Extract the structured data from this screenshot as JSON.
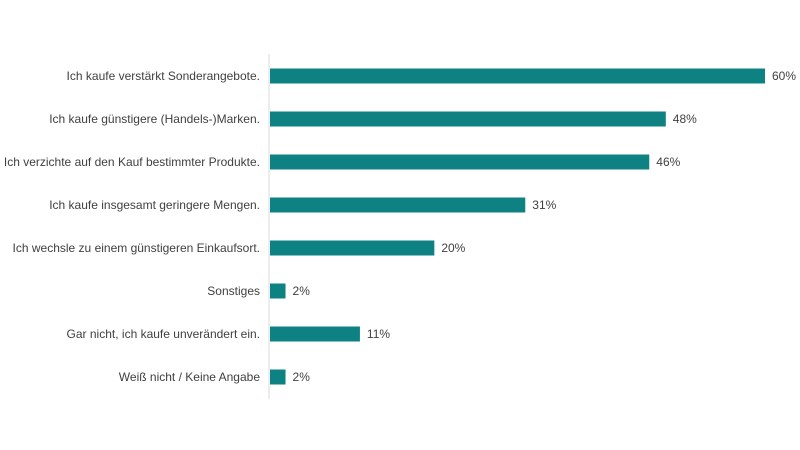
{
  "chart_data": {
    "type": "bar",
    "orientation": "horizontal",
    "categories": [
      "Ich kaufe verstärkt Sonderangebote.",
      "Ich kaufe günstigere (Handels-)Marken.",
      "Ich verzichte auf den Kauf bestimmter Produkte.",
      "Ich kaufe insgesamt geringere Mengen.",
      "Ich wechsle zu einem günstigeren Einkaufsort.",
      "Sonstiges",
      "Gar nicht, ich kaufe unverändert ein.",
      "Weiß nicht / Keine Angabe"
    ],
    "values": [
      60,
      48,
      46,
      31,
      20,
      2,
      11,
      2
    ],
    "value_labels": [
      "60%",
      "48%",
      "46%",
      "31%",
      "20%",
      "2%",
      "11%",
      "2%"
    ],
    "unit": "%",
    "xlim": [
      0,
      60
    ],
    "grid": false,
    "colors": {
      "bar": "#0E8283",
      "axis": "#D9D9D9",
      "text": "#404040"
    }
  }
}
